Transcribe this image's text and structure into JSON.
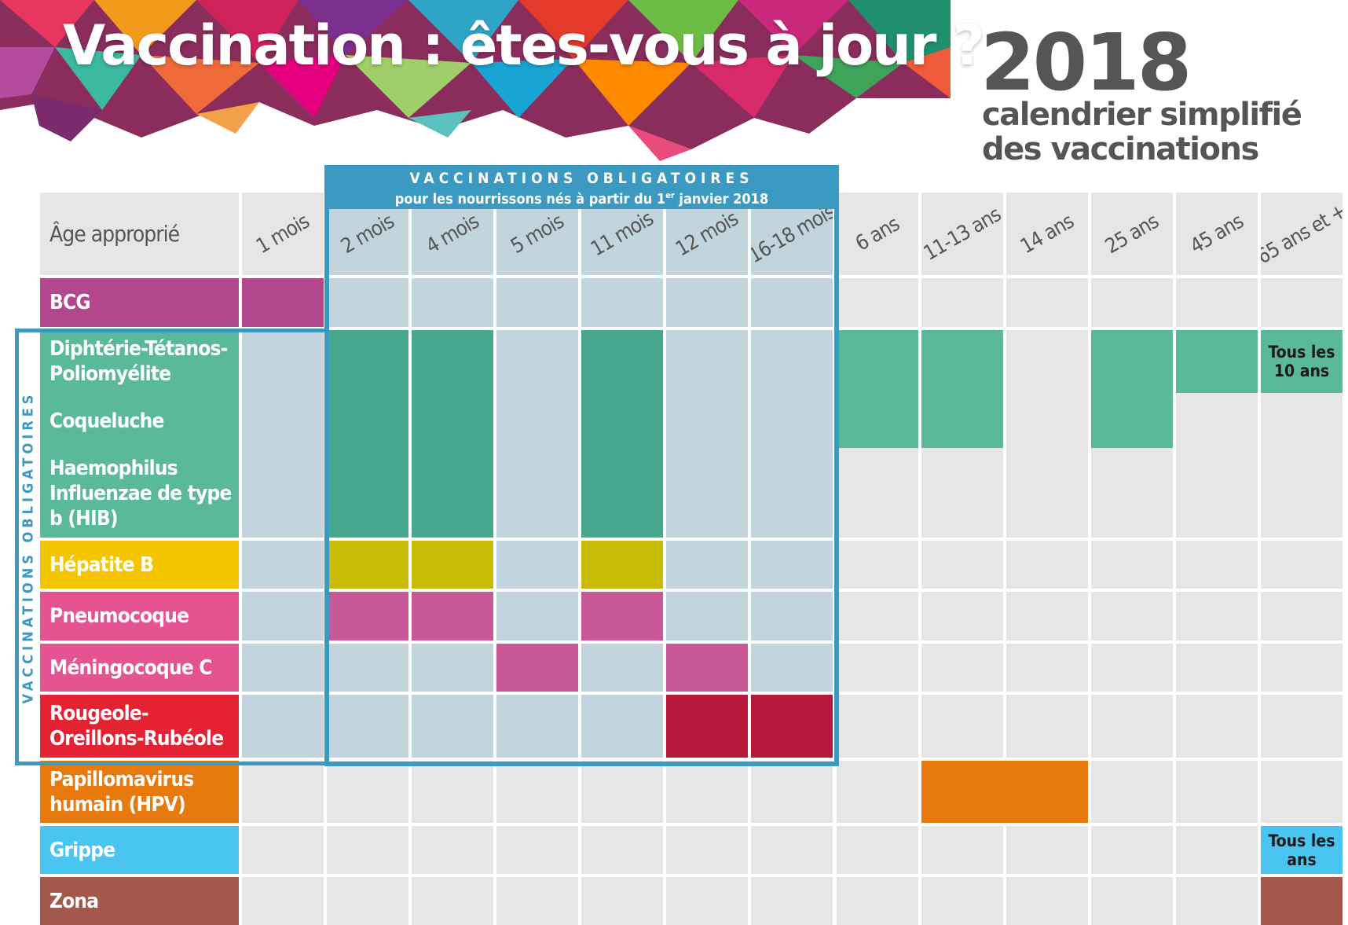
{
  "header": {
    "title": "Vaccination : êtes-vous à jour ?",
    "year": "2018",
    "subtitle_line1": "calendrier simplifié",
    "subtitle_line2": "des vaccinations"
  },
  "mandatory_header": {
    "title": "VACCINATIONS OBLIGATOIRES",
    "subtitle_before": "pour les nourrissons nés à partir du 1",
    "subtitle_sup": "er",
    "subtitle_after": " janvier 2018"
  },
  "side_label": "VACCINATIONS OBLIGATOIRES",
  "age_label": "Âge approprié",
  "ages": [
    "1 mois",
    "2 mois",
    "4 mois",
    "5 mois",
    "11 mois",
    "12 mois",
    "16-18 mois",
    "6 ans",
    "11-13 ans",
    "14 ans",
    "25 ans",
    "45 ans",
    "65 ans et +"
  ],
  "vaccines": [
    {
      "label": "BCG",
      "color": "#b2478e"
    },
    {
      "label": "Diphtérie-Tétanos-Poliomyélite",
      "color": "#5ab99a"
    },
    {
      "label": "Coqueluche",
      "color": "#5ab99a"
    },
    {
      "label": "Haemophilus Influenzae de type b (HIB)",
      "color": "#5ab99a"
    },
    {
      "label": "Hépatite B",
      "color": "#f5c500"
    },
    {
      "label": "Pneumocoque",
      "color": "#e55491"
    },
    {
      "label": "Méningocoque C",
      "color": "#e55491"
    },
    {
      "label": "Rougeole-Oreillons-Rubéole",
      "color": "#e52234"
    },
    {
      "label": "Papillomavirus humain (HPV)",
      "color": "#e8790c"
    },
    {
      "label": "Grippe",
      "color": "#4ac4f1"
    },
    {
      "label": "Zona",
      "color": "#a5574b"
    }
  ],
  "schedule_text": {
    "dtp_65": "Tous les 10 ans",
    "grippe_65": "Tous les ans"
  },
  "colors": {
    "grid_grey": "#e6e6e6",
    "mandatory_bg": "#c2d5de",
    "mandatory_border": "#3a9ac1",
    "green_dark": "#48a88f",
    "green_light": "#5ab99a",
    "hepb_fill": "#c9bb06",
    "pink_fill": "#c85898",
    "ror_fill": "#b5183a",
    "hpv_fill": "#e8790c",
    "grippe_fill": "#4ac4f1",
    "zona_fill": "#a5574b",
    "bcg_fill": "#b2478e"
  }
}
